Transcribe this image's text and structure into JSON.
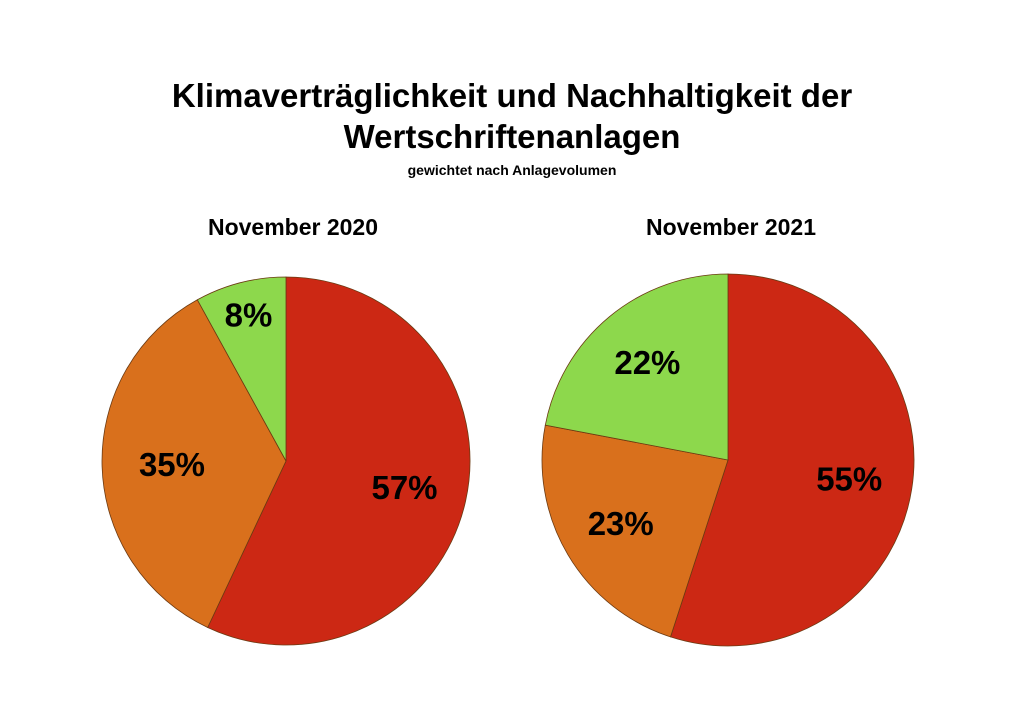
{
  "title_line1": "Klimaverträglichkeit und Nachhaltigkeit der",
  "title_line2": "Wertschriftenanlagen",
  "subtitle": "gewichtet nach Anlagevolumen",
  "chart_data": [
    {
      "type": "pie",
      "title": "November 2020",
      "start": "12 o'clock",
      "direction": "clockwise",
      "slices": [
        {
          "label": "57%",
          "value": 57,
          "color": "#cc2814"
        },
        {
          "label": "35%",
          "value": 35,
          "color": "#d9701c"
        },
        {
          "label": "8%",
          "value": 8,
          "color": "#8dd84c"
        }
      ]
    },
    {
      "type": "pie",
      "title": "November 2021",
      "start": "12 o'clock",
      "direction": "clockwise",
      "slices": [
        {
          "label": "55%",
          "value": 55,
          "color": "#cc2814"
        },
        {
          "label": "23%",
          "value": 23,
          "color": "#d9701c"
        },
        {
          "label": "22%",
          "value": 22,
          "color": "#8dd84c"
        }
      ]
    }
  ]
}
